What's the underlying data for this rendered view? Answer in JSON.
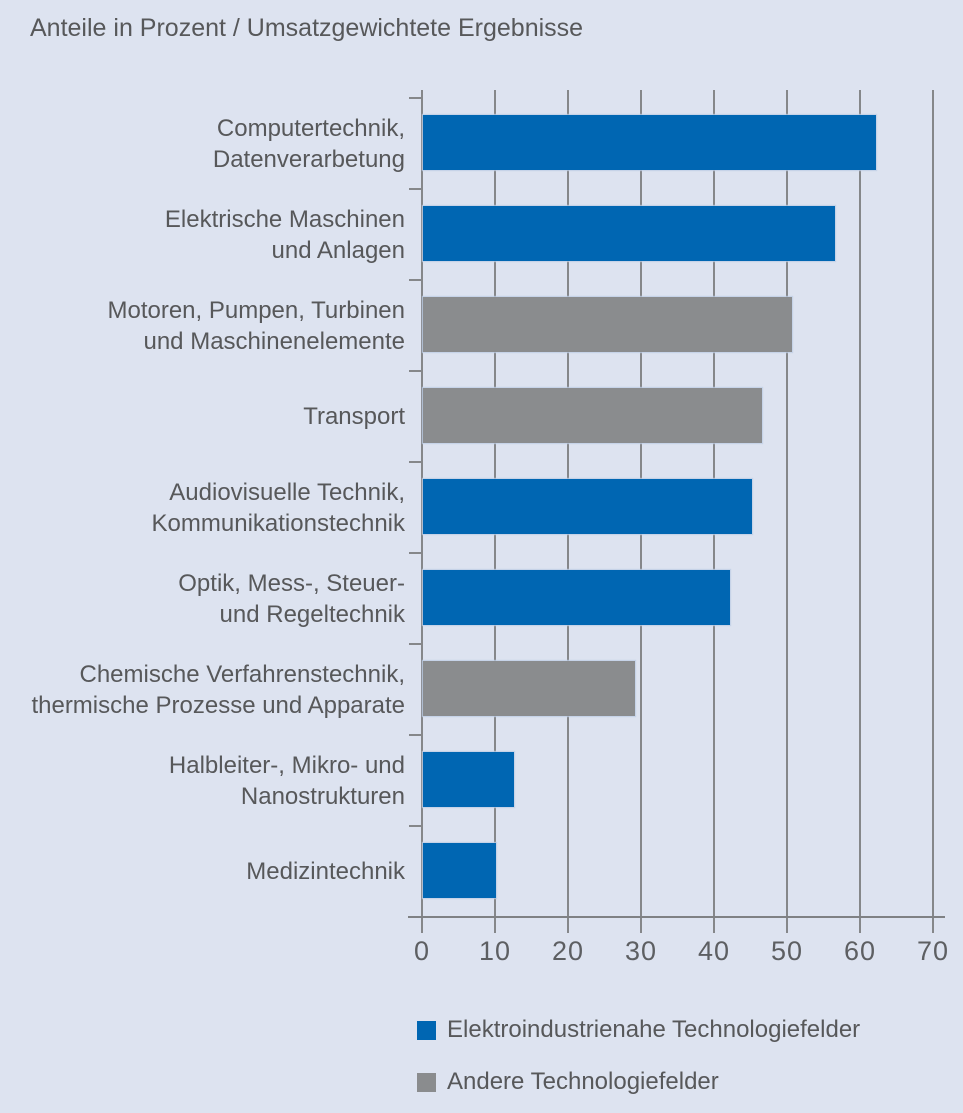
{
  "header": {
    "title": "Anteile in Prozent / Umsatzgewichtete Ergebnisse"
  },
  "colors": {
    "background": "#dde3f0",
    "grid": "#85878a",
    "text": "#57585a",
    "elektro_blue": "#0066b2",
    "andere_gray": "#8a8c8e"
  },
  "chart_data": {
    "type": "bar",
    "orientation": "horizontal",
    "title": "Anteile in Prozent / Umsatzgewichtete Ergebnisse",
    "xlabel": "",
    "ylabel": "",
    "xlim": [
      0,
      70
    ],
    "xticks": [
      0,
      10,
      20,
      30,
      40,
      50,
      60,
      70
    ],
    "grid": true,
    "legend_position": "bottom-left",
    "groups": {
      "elektro": {
        "label": "Elektroindustrienahe Technologiefelder",
        "color": "#0066b2"
      },
      "andere": {
        "label": "Andere Technologiefelder",
        "color": "#8a8c8e"
      }
    },
    "bars": [
      {
        "label_lines": [
          "Computertechnik,",
          "Datenverarbetung"
        ],
        "label": "Computertechnik, Datenverarbetung",
        "value": 62,
        "group": "elektro"
      },
      {
        "label_lines": [
          "Elektrische Maschinen",
          "und Anlagen"
        ],
        "label": "Elektrische Maschinen und Anlagen",
        "value": 56.5,
        "group": "elektro"
      },
      {
        "label_lines": [
          "Motoren, Pumpen, Turbinen",
          "und Maschinenelemente"
        ],
        "label": "Motoren, Pumpen, Turbinen und Maschinenelemente",
        "value": 50.5,
        "group": "andere"
      },
      {
        "label_lines": [
          "Transport"
        ],
        "label": "Transport",
        "value": 46.5,
        "group": "andere"
      },
      {
        "label_lines": [
          "Audiovisuelle Technik,",
          "Kommunikationstechnik"
        ],
        "label": "Audiovisuelle Technik, Kommunikationstechnik",
        "value": 45,
        "group": "elektro"
      },
      {
        "label_lines": [
          "Optik, Mess-, Steuer-",
          "und Regeltechnik"
        ],
        "label": "Optik, Mess-, Steuer- und Regeltechnik",
        "value": 42,
        "group": "elektro"
      },
      {
        "label_lines": [
          "Chemische Verfahrenstechnik,",
          "thermische Prozesse und Apparate"
        ],
        "label": "Chemische Verfahrenstechnik, thermische Prozesse und Apparate",
        "value": 29,
        "group": "andere"
      },
      {
        "label_lines": [
          "Halbleiter-, Mikro- und",
          "Nanostrukturen"
        ],
        "label": "Halbleiter-, Mikro- und Nanostrukturen",
        "value": 12.5,
        "group": "elektro"
      },
      {
        "label_lines": [
          "Medizintechnik"
        ],
        "label": "Medizintechnik",
        "value": 10,
        "group": "elektro"
      }
    ],
    "legend": [
      {
        "group": "elektro",
        "label": "Elektroindustrienahe Technologiefelder"
      },
      {
        "group": "andere",
        "label": "Andere Technologiefelder"
      }
    ]
  }
}
